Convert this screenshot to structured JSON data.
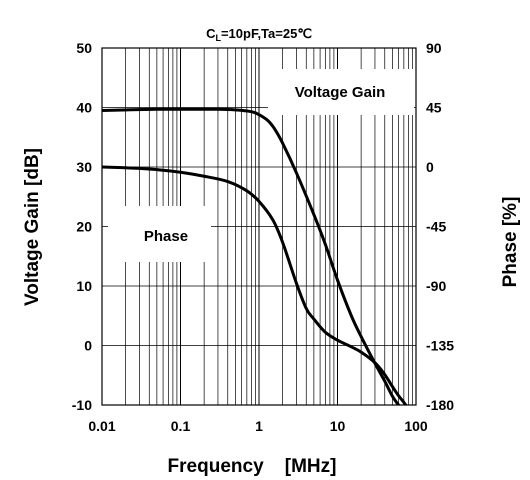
{
  "chart_data": {
    "type": "line",
    "title_parts": {
      "c": "C",
      "sub": "L",
      "rest": "=10pF,Ta=25℃"
    },
    "xlabel": "Frequency    [MHz]",
    "ylabel_left": "Voltage Gain [dB]",
    "ylabel_right": "Phase [%]",
    "x_scale": "log",
    "xlim": [
      0.01,
      100
    ],
    "ylim_left": [
      -10,
      50
    ],
    "ylim_right": [
      -180,
      90
    ],
    "x_ticks": [
      {
        "v": 0.01,
        "label": "0.01"
      },
      {
        "v": 0.1,
        "label": "0.1"
      },
      {
        "v": 1,
        "label": "1"
      },
      {
        "v": 10,
        "label": "10"
      },
      {
        "v": 100,
        "label": "100"
      }
    ],
    "y_ticks_left": [
      "-10",
      "0",
      "10",
      "20",
      "30",
      "40",
      "50"
    ],
    "y_ticks_right": [
      "-180",
      "-135",
      "-90",
      "-45",
      "0",
      "45",
      "90"
    ],
    "grid": true,
    "annotations": [
      "Voltage Gain",
      "Phase"
    ],
    "series": [
      {
        "name": "Voltage Gain",
        "axis": "left",
        "x": [
          0.01,
          0.05,
          0.1,
          0.3,
          0.5,
          0.8,
          1.0,
          1.3,
          1.6,
          2.0,
          3.0,
          5.0,
          7.0,
          10,
          15,
          20,
          30,
          40,
          50,
          60,
          70
        ],
        "y": [
          39.5,
          39.7,
          39.7,
          39.7,
          39.6,
          39.3,
          38.8,
          37.8,
          36.3,
          34.0,
          29.0,
          22.0,
          17.0,
          11.0,
          5.0,
          1.5,
          -3.0,
          -6.0,
          -8.5,
          -10.0,
          -11.0
        ]
      },
      {
        "name": "Phase",
        "axis": "right",
        "x": [
          0.01,
          0.03,
          0.05,
          0.1,
          0.2,
          0.4,
          0.7,
          1.0,
          1.5,
          2.0,
          3.0,
          4.0,
          5.0,
          7.0,
          10,
          15,
          20,
          30,
          40,
          50,
          60,
          70,
          80
        ],
        "y": [
          0,
          -1,
          -2,
          -4,
          -7,
          -11,
          -18,
          -26,
          -40,
          -57,
          -88,
          -107,
          -115,
          -125,
          -131,
          -136,
          -140,
          -148,
          -157,
          -166,
          -173,
          -178,
          -183
        ]
      }
    ]
  }
}
